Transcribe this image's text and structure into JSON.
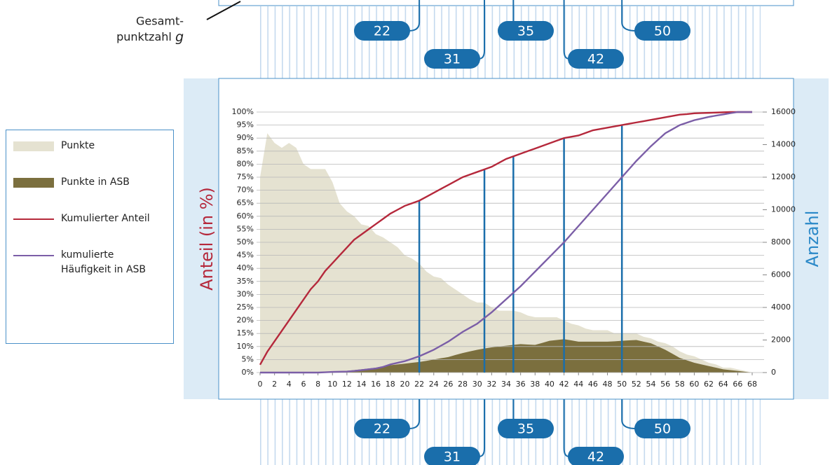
{
  "chart_data": {
    "type": "combo",
    "annotation": [
      "Gesamt-",
      "punktzahl"
    ],
    "annotation_variable": "g",
    "ylabel": "Anteil (in %)",
    "y2label": "Anzahl",
    "x": [
      0,
      1,
      2,
      3,
      4,
      5,
      6,
      7,
      8,
      9,
      10,
      11,
      12,
      13,
      14,
      15,
      16,
      17,
      18,
      19,
      20,
      21,
      22,
      23,
      24,
      25,
      26,
      27,
      28,
      29,
      30,
      31,
      32,
      33,
      34,
      35,
      36,
      37,
      38,
      39,
      40,
      41,
      42,
      43,
      44,
      45,
      46,
      47,
      48,
      49,
      50,
      51,
      52,
      53,
      54,
      55,
      56,
      57,
      58,
      59,
      60,
      61,
      62,
      63,
      64,
      65,
      66,
      67,
      68
    ],
    "xlim": [
      0,
      68
    ],
    "xticks": [
      0,
      2,
      4,
      6,
      8,
      10,
      12,
      14,
      16,
      18,
      20,
      22,
      24,
      26,
      28,
      30,
      32,
      34,
      36,
      38,
      40,
      42,
      44,
      46,
      48,
      50,
      52,
      54,
      56,
      58,
      60,
      62,
      64,
      66,
      68
    ],
    "ylim": [
      0,
      100
    ],
    "yticks": [
      {
        "value": 0,
        "label": "0%"
      },
      {
        "value": 5,
        "label": "5%"
      },
      {
        "value": 10,
        "label": "10%"
      },
      {
        "value": 15,
        "label": "15%"
      },
      {
        "value": 20,
        "label": "20%"
      },
      {
        "value": 25,
        "label": "25%"
      },
      {
        "value": 30,
        "label": "30%"
      },
      {
        "value": 35,
        "label": "35%"
      },
      {
        "value": 40,
        "label": "40%"
      },
      {
        "value": 45,
        "label": "45%"
      },
      {
        "value": 50,
        "label": "50%"
      },
      {
        "value": 55,
        "label": "55%"
      },
      {
        "value": 60,
        "label": "60%"
      },
      {
        "value": 65,
        "label": "65%"
      },
      {
        "value": 70,
        "label": "70%"
      },
      {
        "value": 75,
        "label": "75%"
      },
      {
        "value": 80,
        "label": "80%"
      },
      {
        "value": 85,
        "label": "85%"
      },
      {
        "value": 90,
        "label": "90%"
      },
      {
        "value": 95,
        "label": "95%"
      },
      {
        "value": 100,
        "label": "100%"
      }
    ],
    "y2lim": [
      0,
      16000
    ],
    "y2ticks": [
      0,
      2000,
      4000,
      6000,
      8000,
      10000,
      12000,
      14000,
      16000
    ],
    "grid": true,
    "markers": [
      22,
      31,
      35,
      42,
      50
    ],
    "marker_color": "#1a6eab",
    "series": [
      {
        "name": "Punkte",
        "type": "area",
        "axis": "y2",
        "color": "#e5e2d1",
        "values": [
          12000,
          14700,
          14100,
          13800,
          14100,
          13800,
          12800,
          12500,
          12500,
          12500,
          11700,
          10400,
          9900,
          9600,
          9100,
          9000,
          8500,
          8300,
          8000,
          7700,
          7200,
          7000,
          6700,
          6200,
          5900,
          5800,
          5400,
          5100,
          4800,
          4500,
          4300,
          4300,
          4000,
          3800,
          3800,
          3800,
          3700,
          3500,
          3400,
          3400,
          3400,
          3400,
          3200,
          3000,
          2900,
          2700,
          2600,
          2600,
          2600,
          2400,
          2400,
          2400,
          2400,
          2200,
          2100,
          1900,
          1800,
          1600,
          1300,
          1100,
          1000,
          800,
          600,
          500,
          300,
          300,
          200,
          100,
          0
        ]
      },
      {
        "name": "Punkte in ASB",
        "type": "area",
        "axis": "y2",
        "color": "#7b6f3e",
        "values": [
          0,
          0,
          0,
          0,
          0,
          0,
          0,
          0,
          0,
          0,
          50,
          80,
          100,
          150,
          200,
          250,
          300,
          380,
          450,
          500,
          550,
          600,
          650,
          720,
          800,
          880,
          950,
          1080,
          1200,
          1300,
          1400,
          1480,
          1550,
          1600,
          1650,
          1700,
          1750,
          1720,
          1700,
          1820,
          1950,
          2000,
          2050,
          1980,
          1900,
          1900,
          1900,
          1900,
          1900,
          1920,
          1950,
          1980,
          2000,
          1900,
          1800,
          1600,
          1400,
          1150,
          900,
          750,
          600,
          500,
          400,
          300,
          200,
          150,
          100,
          50,
          0
        ]
      },
      {
        "name": "Kumulierter Anteil",
        "type": "line",
        "color": "#b5283b",
        "values": [
          3,
          8,
          12,
          16,
          20,
          24,
          28,
          32,
          35,
          39,
          42,
          45,
          48,
          51,
          53,
          55,
          57,
          59,
          61,
          62.5,
          64,
          65,
          66,
          67.5,
          69,
          70.5,
          72,
          73.5,
          75,
          76,
          77,
          78,
          79,
          80.5,
          82,
          83,
          84,
          85,
          86,
          87,
          88,
          89,
          90,
          90.5,
          91,
          92,
          93,
          93.5,
          94,
          94.5,
          95,
          95.5,
          96,
          96.5,
          97,
          97.5,
          98,
          98.5,
          99,
          99.2,
          99.5,
          99.6,
          99.7,
          99.8,
          99.9,
          100,
          100,
          100,
          100
        ]
      },
      {
        "name": "kumulierte Häufigkeit in ASB",
        "type": "line",
        "axis": "y2",
        "color": "#7b5ea7",
        "values": [
          0,
          0,
          0,
          0,
          0,
          0,
          0,
          0,
          0,
          20,
          40,
          50,
          60,
          100,
          150,
          200,
          250,
          350,
          500,
          600,
          700,
          850,
          1000,
          1200,
          1400,
          1650,
          1900,
          2200,
          2500,
          2750,
          3000,
          3350,
          3700,
          4100,
          4500,
          4900,
          5300,
          5750,
          6200,
          6650,
          7100,
          7550,
          8000,
          8500,
          9000,
          9500,
          10000,
          10500,
          11000,
          11500,
          12000,
          12500,
          13000,
          13450,
          13900,
          14300,
          14700,
          14950,
          15200,
          15350,
          15500,
          15600,
          15700,
          15780,
          15850,
          15930,
          16000,
          16000,
          16000
        ]
      }
    ]
  }
}
